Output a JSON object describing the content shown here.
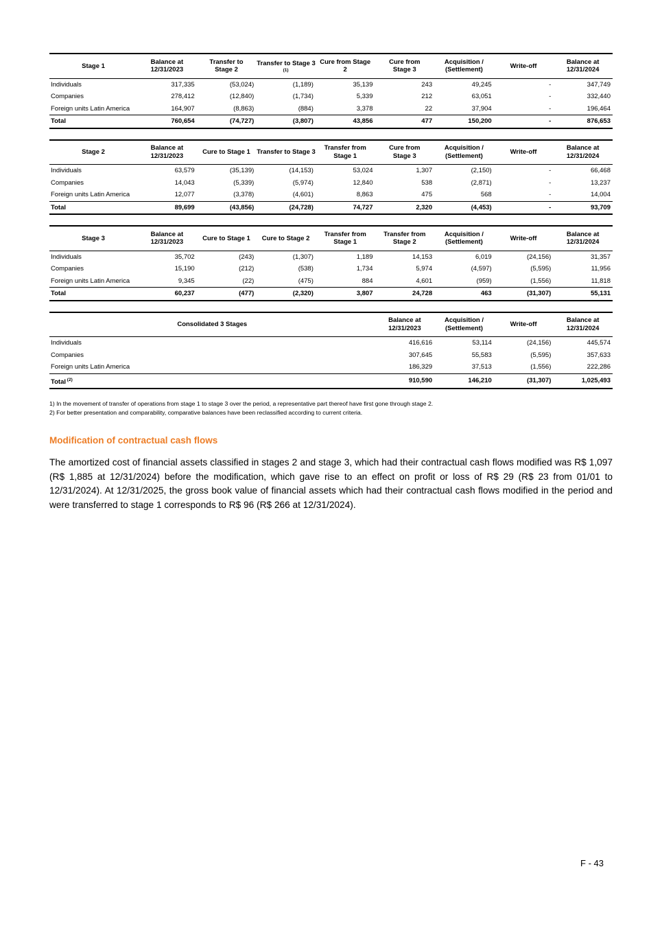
{
  "colors": {
    "accent": "#ED7D26"
  },
  "page_number": "F - 43",
  "tables": [
    {
      "title": "Stage 1",
      "headers": [
        {
          "text": "Balance at\n12/31/2023"
        },
        {
          "text": "Transfer to\nStage 2"
        },
        {
          "text": "Transfer to Stage 3",
          "sup": "(1)"
        },
        {
          "text": "Cure from Stage\n2"
        },
        {
          "text": "Cure from\nStage 3"
        },
        {
          "text": "Acquisition /\n(Settlement)"
        },
        {
          "text": "Write-off"
        },
        {
          "text": "Balance at\n12/31/2024"
        }
      ],
      "rows": [
        {
          "label": "Individuals",
          "values": [
            "317,335",
            "(53,024)",
            "(1,189)",
            "35,139",
            "243",
            "49,245",
            "-",
            "347,749"
          ]
        },
        {
          "label": "Companies",
          "values": [
            "278,412",
            "(12,840)",
            "(1,734)",
            "5,339",
            "212",
            "63,051",
            "-",
            "332,440"
          ]
        },
        {
          "label": "Foreign units Latin America",
          "values": [
            "164,907",
            "(8,863)",
            "(884)",
            "3,378",
            "22",
            "37,904",
            "-",
            "196,464"
          ]
        }
      ],
      "total": {
        "label": "Total",
        "values": [
          "760,654",
          "(74,727)",
          "(3,807)",
          "43,856",
          "477",
          "150,200",
          "-",
          "876,653"
        ]
      }
    },
    {
      "title": "Stage 2",
      "headers": [
        {
          "text": "Balance at\n12/31/2023"
        },
        {
          "text": "Cure to Stage 1"
        },
        {
          "text": "Transfer to Stage 3"
        },
        {
          "text": "Transfer from\nStage 1"
        },
        {
          "text": "Cure from\nStage 3"
        },
        {
          "text": "Acquisition /\n(Settlement)"
        },
        {
          "text": "Write-off"
        },
        {
          "text": "Balance at\n12/31/2024"
        }
      ],
      "rows": [
        {
          "label": "Individuals",
          "values": [
            "63,579",
            "(35,139)",
            "(14,153)",
            "53,024",
            "1,307",
            "(2,150)",
            "-",
            "66,468"
          ]
        },
        {
          "label": "Companies",
          "values": [
            "14,043",
            "(5,339)",
            "(5,974)",
            "12,840",
            "538",
            "(2,871)",
            "-",
            "13,237"
          ]
        },
        {
          "label": "Foreign units Latin America",
          "values": [
            "12,077",
            "(3,378)",
            "(4,601)",
            "8,863",
            "475",
            "568",
            "-",
            "14,004"
          ]
        }
      ],
      "total": {
        "label": "Total",
        "values": [
          "89,699",
          "(43,856)",
          "(24,728)",
          "74,727",
          "2,320",
          "(4,453)",
          "-",
          "93,709"
        ]
      }
    },
    {
      "title": "Stage 3",
      "headers": [
        {
          "text": "Balance at\n12/31/2023"
        },
        {
          "text": "Cure to Stage 1"
        },
        {
          "text": "Cure to Stage 2"
        },
        {
          "text": "Transfer from\nStage 1"
        },
        {
          "text": "Transfer from\nStage 2"
        },
        {
          "text": "Acquisition /\n(Settlement)"
        },
        {
          "text": "Write-off"
        },
        {
          "text": "Balance at\n12/31/2024"
        }
      ],
      "rows": [
        {
          "label": "Individuals",
          "values": [
            "35,702",
            "(243)",
            "(1,307)",
            "1,189",
            "14,153",
            "6,019",
            "(24,156)",
            "31,357"
          ]
        },
        {
          "label": "Companies",
          "values": [
            "15,190",
            "(212)",
            "(538)",
            "1,734",
            "5,974",
            "(4,597)",
            "(5,595)",
            "11,956"
          ]
        },
        {
          "label": "Foreign units Latin America",
          "values": [
            "9,345",
            "(22)",
            "(475)",
            "884",
            "4,601",
            "(959)",
            "(1,556)",
            "11,818"
          ]
        }
      ],
      "total": {
        "label": "Total",
        "values": [
          "60,237",
          "(477)",
          "(2,320)",
          "3,807",
          "24,728",
          "463",
          "(31,307)",
          "55,131"
        ]
      }
    },
    {
      "title": "Consolidated 3 Stages",
      "headers": [
        {
          "text": "Balance at\n12/31/2023"
        },
        {
          "text": "Acquisition /\n(Settlement)"
        },
        {
          "text": "Write-off"
        },
        {
          "text": "Balance at\n12/31/2024"
        }
      ],
      "rows": [
        {
          "label": "Individuals",
          "values": [
            "416,616",
            "53,114",
            "(24,156)",
            "445,574"
          ]
        },
        {
          "label": "Companies",
          "values": [
            "307,645",
            "55,583",
            "(5,595)",
            "357,633"
          ]
        },
        {
          "label": "Foreign units Latin America",
          "values": [
            "186,329",
            "37,513",
            "(1,556)",
            "222,286"
          ]
        }
      ],
      "total": {
        "label": "Total",
        "sup": "(2)",
        "values": [
          "910,590",
          "146,210",
          "(31,307)",
          "1,025,493"
        ]
      }
    }
  ],
  "footnotes": [
    "1) In the movement of transfer of operations from stage 1 to stage 3 over the period, a representative part thereof have first gone through stage 2.",
    "2) For better presentation and comparability, comparative balances have been reclassified according to current criteria."
  ],
  "section": {
    "heading": "Modification of contractual cash flows",
    "paragraph": "The amortized cost of financial assets classified in stages 2 and stage 3, which had their contractual cash flows modified was R$ 1,097 (R$ 1,885 at 12/31/2024) before the modification, which gave rise to an effect on profit or loss of R$ 29 (R$ 23 from 01/01 to 12/31/2024). At 12/31/2025, the gross book value of financial assets which had their contractual cash flows modified in the period and were transferred to stage 1 corresponds to R$ 96 (R$ 266 at 12/31/2024)."
  }
}
